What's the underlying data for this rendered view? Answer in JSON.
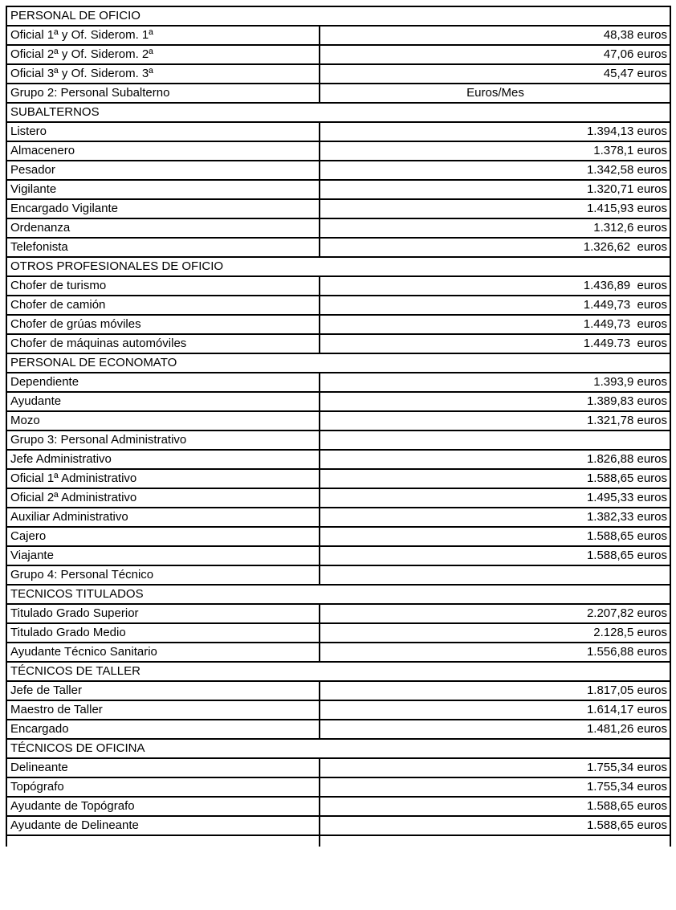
{
  "style": {
    "border_color": "#000000",
    "text_color": "#000000",
    "background_color": "#ffffff"
  },
  "table": {
    "rows": [
      {
        "type": "section",
        "label": "PERSONAL DE OFICIO"
      },
      {
        "type": "item",
        "label": "Oficial 1ª y Of. Siderom. 1ª",
        "value": "48,38 euros"
      },
      {
        "type": "item",
        "label": "Oficial 2ª y Of. Siderom. 2ª",
        "value": "47,06 euros"
      },
      {
        "type": "item",
        "label": "Oficial 3ª y Of. Siderom. 3ª",
        "value": "45,47 euros"
      },
      {
        "type": "group",
        "label": "Grupo 2: Personal Subalterno",
        "value": "Euros/Mes"
      },
      {
        "type": "section",
        "label": "SUBALTERNOS"
      },
      {
        "type": "item",
        "label": "Listero",
        "value": "1.394,13 euros"
      },
      {
        "type": "item",
        "label": "Almacenero",
        "value": "1.378,1 euros"
      },
      {
        "type": "item",
        "label": "Pesador",
        "value": "1.342,58 euros"
      },
      {
        "type": "item",
        "label": "Vigilante",
        "value": "1.320,71 euros"
      },
      {
        "type": "item",
        "label": "Encargado Vigilante",
        "value": "1.415,93 euros"
      },
      {
        "type": "item",
        "label": "Ordenanza",
        "value": "1.312,6 euros"
      },
      {
        "type": "item",
        "label": "Telefonista",
        "value": "1.326,62  euros"
      },
      {
        "type": "section",
        "label": "OTROS PROFESIONALES DE OFICIO"
      },
      {
        "type": "item",
        "label": "Chofer de turismo",
        "value": "1.436,89  euros"
      },
      {
        "type": "item",
        "label": "Chofer de camión",
        "value": "1.449,73  euros"
      },
      {
        "type": "item",
        "label": "Chofer de grúas móviles",
        "value": "1.449,73  euros"
      },
      {
        "type": "item",
        "label": "Chofer de máquinas automóviles",
        "value": "1.449.73  euros"
      },
      {
        "type": "section",
        "label": "PERSONAL DE ECONOMATO"
      },
      {
        "type": "item",
        "label": "Dependiente",
        "value": "1.393,9 euros"
      },
      {
        "type": "item",
        "label": "Ayudante",
        "value": "1.389,83 euros"
      },
      {
        "type": "item",
        "label": "Mozo",
        "value": "1.321,78 euros"
      },
      {
        "type": "group",
        "label": "Grupo 3: Personal Administrativo",
        "value": ""
      },
      {
        "type": "item",
        "label": "Jefe Administrativo",
        "value": "1.826,88 euros"
      },
      {
        "type": "item",
        "label": "Oficial 1ª Administrativo",
        "value": "1.588,65 euros"
      },
      {
        "type": "item",
        "label": "Oficial 2ª Administrativo",
        "value": "1.495,33 euros"
      },
      {
        "type": "item",
        "label": "Auxiliar Administrativo",
        "value": "1.382,33 euros"
      },
      {
        "type": "item",
        "label": "Cajero",
        "value": "1.588,65 euros"
      },
      {
        "type": "item",
        "label": "Viajante",
        "value": "1.588,65 euros"
      },
      {
        "type": "group",
        "label": "Grupo 4: Personal Técnico",
        "value": ""
      },
      {
        "type": "section",
        "label": "TECNICOS TITULADOS"
      },
      {
        "type": "item",
        "label": "Titulado Grado Superior",
        "value": "2.207,82 euros"
      },
      {
        "type": "item",
        "label": "Titulado Grado Medio",
        "value": "2.128,5 euros"
      },
      {
        "type": "item",
        "label": "Ayudante Técnico Sanitario",
        "value": "1.556,88 euros"
      },
      {
        "type": "section",
        "label": "TÉCNICOS DE TALLER"
      },
      {
        "type": "item",
        "label": "Jefe de Taller",
        "value": "1.817,05 euros"
      },
      {
        "type": "item",
        "label": "Maestro de Taller",
        "value": "1.614,17 euros"
      },
      {
        "type": "item",
        "label": "Encargado",
        "value": "1.481,26 euros"
      },
      {
        "type": "section",
        "label": "TÉCNICOS DE OFICINA"
      },
      {
        "type": "item",
        "label": "Delineante",
        "value": "1.755,34 euros"
      },
      {
        "type": "item",
        "label": "Topógrafo",
        "value": "1.755,34 euros"
      },
      {
        "type": "item",
        "label": "Ayudante de Topógrafo",
        "value": "1.588,65 euros"
      },
      {
        "type": "item",
        "label": "Ayudante de Delineante",
        "value": "1.588,65 euros"
      },
      {
        "type": "partial"
      }
    ]
  }
}
